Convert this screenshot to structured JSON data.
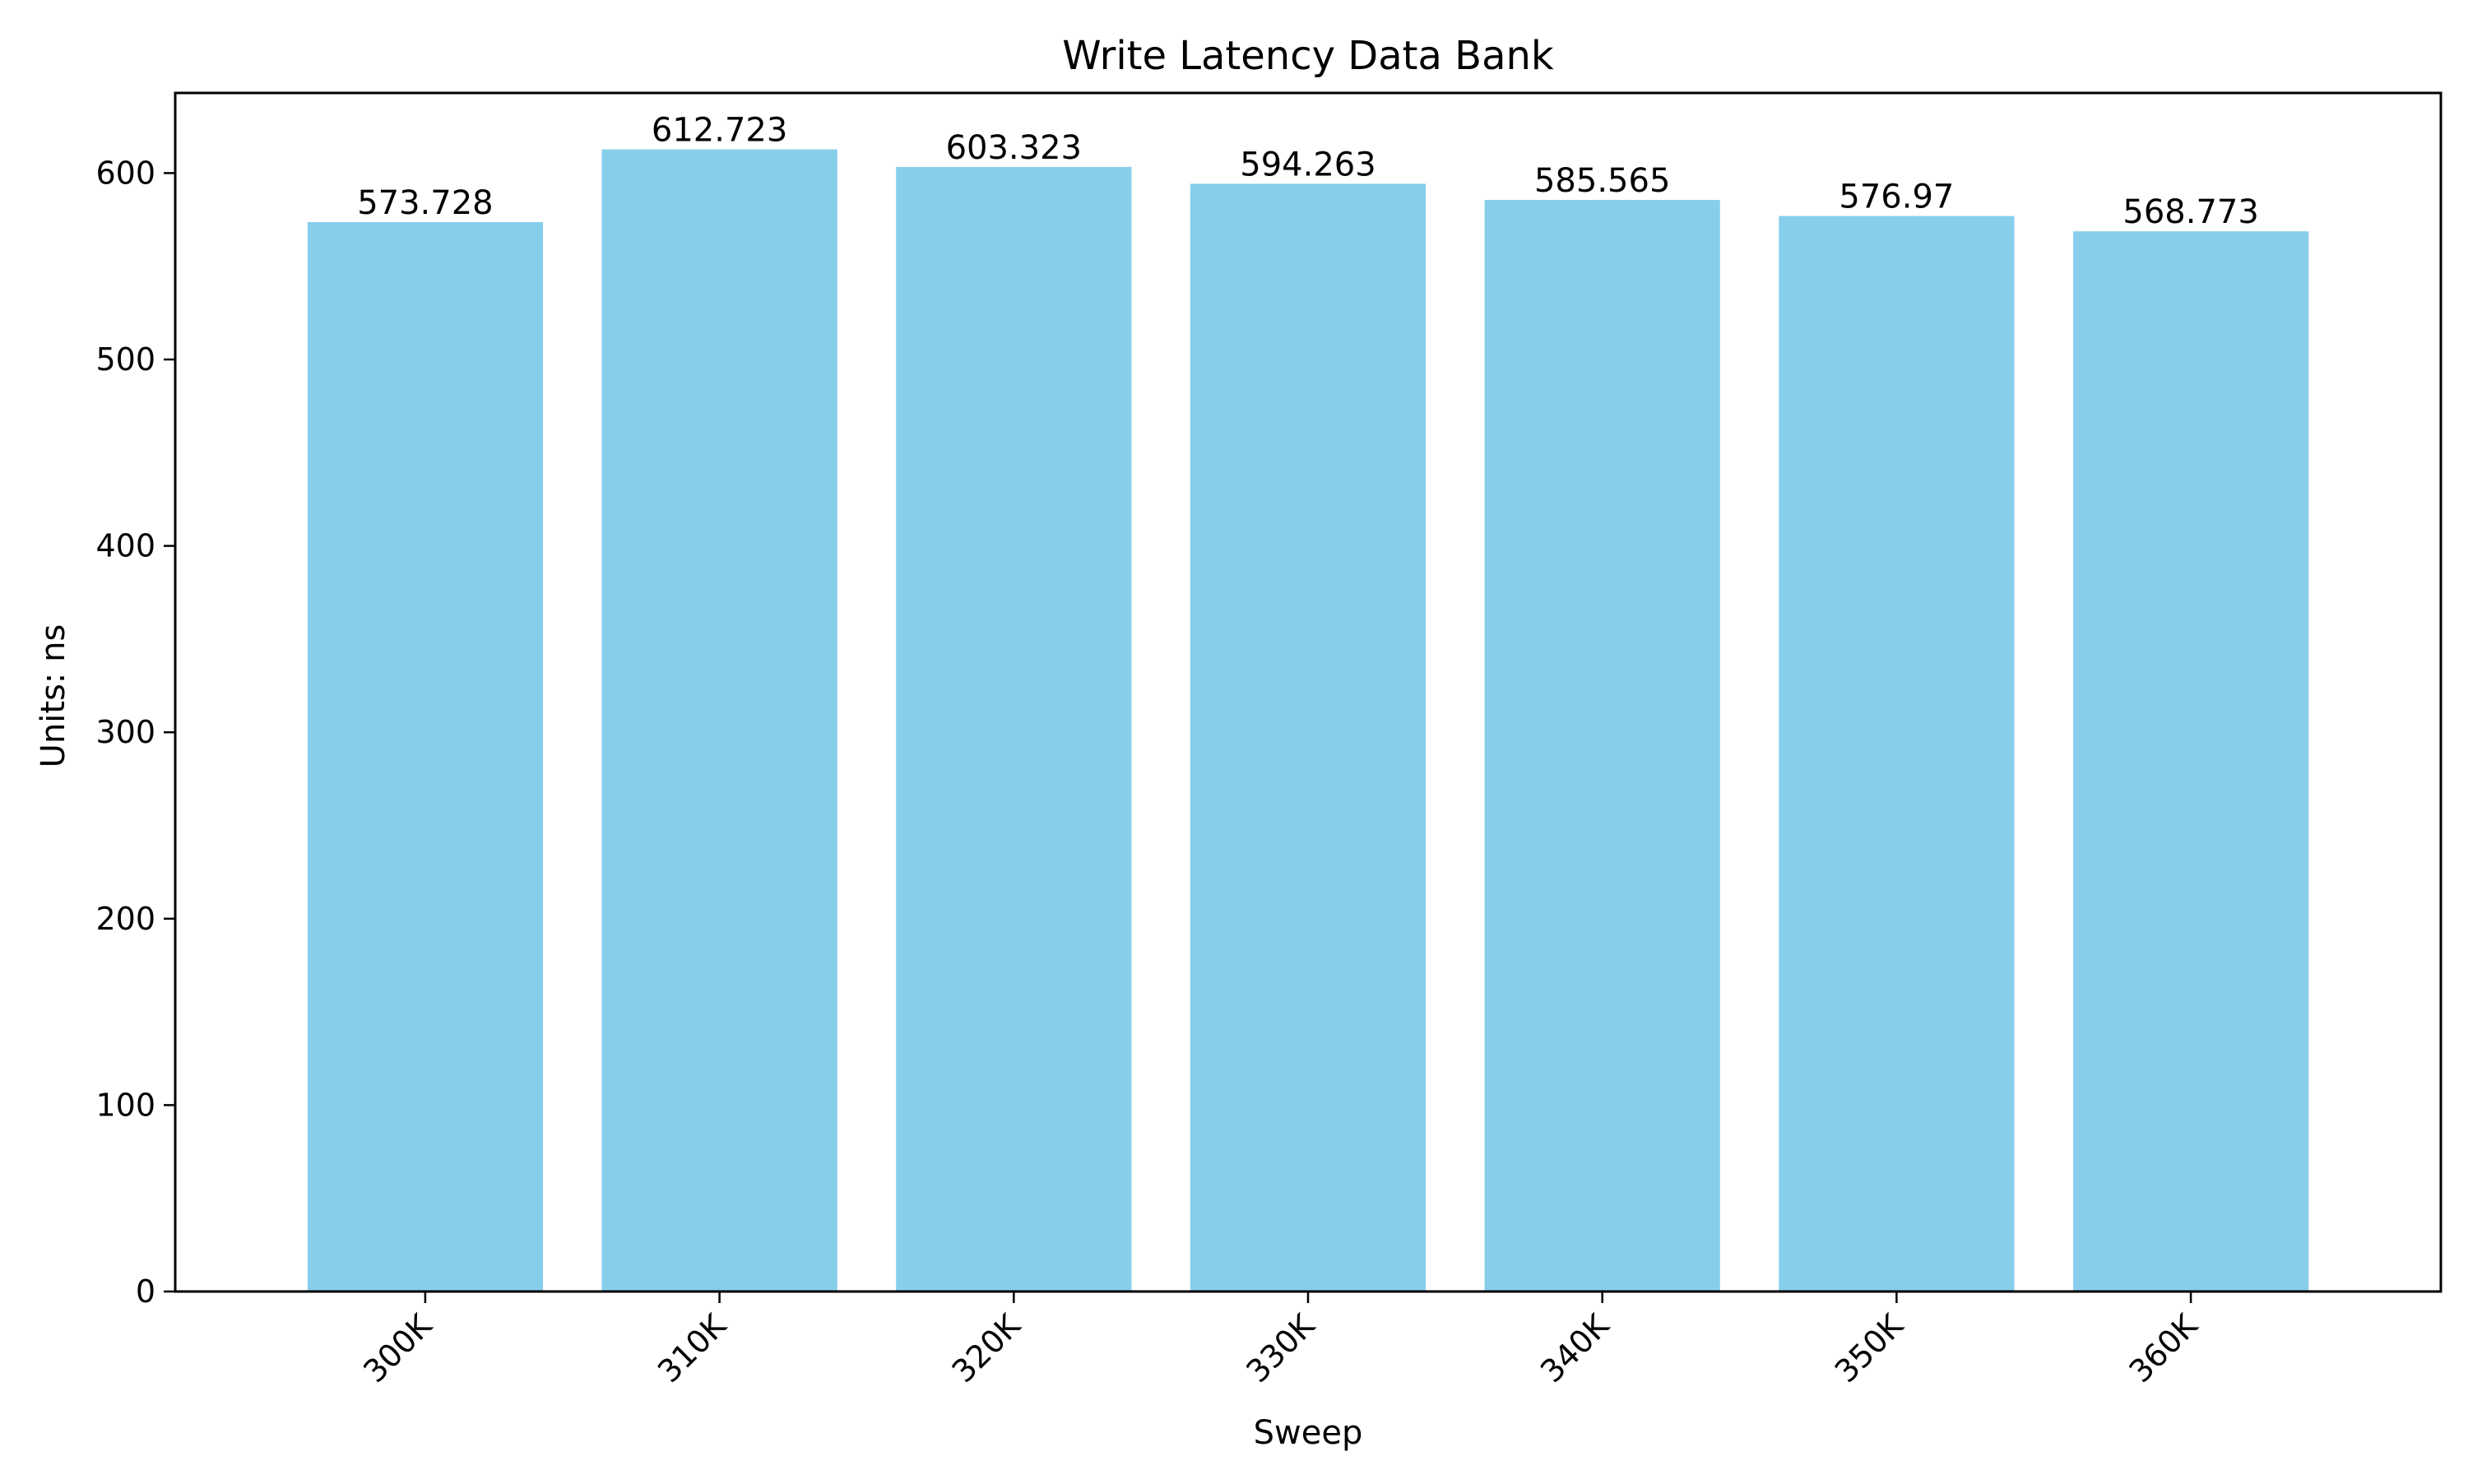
{
  "chart_data": {
    "type": "bar",
    "title": "Write Latency Data Bank",
    "xlabel": "Sweep",
    "ylabel": "Units: ns",
    "categories": [
      "300K",
      "310K",
      "320K",
      "330K",
      "340K",
      "350K",
      "360K"
    ],
    "values": [
      573.728,
      612.723,
      603.323,
      594.263,
      585.565,
      576.97,
      568.773
    ],
    "data_labels": [
      "573.728",
      "612.723",
      "603.323",
      "594.263",
      "585.565",
      "576.97",
      "568.773"
    ],
    "ylim": [
      0,
      643
    ],
    "yticks": [
      0,
      100,
      200,
      300,
      400,
      500,
      600
    ],
    "grid": false,
    "legend": "none",
    "bar_color": "#87CEEB",
    "x_tick_rotation": "45"
  }
}
